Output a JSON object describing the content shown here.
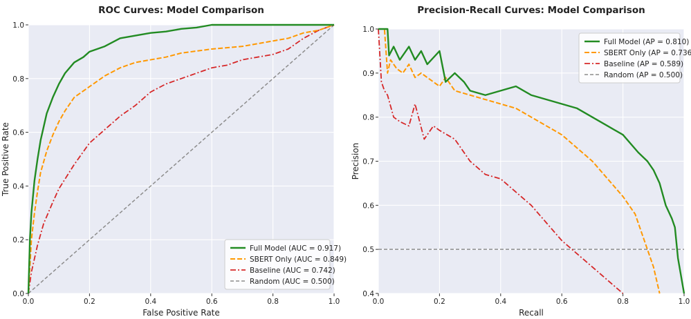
{
  "colors": {
    "panel_bg": "#e9ebf4",
    "grid": "#ffffff",
    "full_model": "#228b22",
    "sbert_only": "#ff9800",
    "baseline": "#d62728",
    "random": "#8c8c8c"
  },
  "chart_data": [
    {
      "type": "line",
      "title": "ROC Curves: Model Comparison",
      "xlabel": "False Positive Rate",
      "ylabel": "True Positive Rate",
      "xlim": [
        0,
        1
      ],
      "ylim": [
        0,
        1
      ],
      "xticks": [
        "0.0",
        "0.2",
        "0.4",
        "0.6",
        "0.8",
        "1.0"
      ],
      "yticks": [
        "0.0",
        "0.2",
        "0.4",
        "0.6",
        "0.8",
        "1.0"
      ],
      "grid": true,
      "legend_position": "bottom-right",
      "series": [
        {
          "name": "Full Model (AUC = 0.917)",
          "x": [
            0,
            0.005,
            0.01,
            0.02,
            0.03,
            0.04,
            0.05,
            0.06,
            0.08,
            0.1,
            0.12,
            0.15,
            0.18,
            0.2,
            0.25,
            0.3,
            0.35,
            0.4,
            0.45,
            0.5,
            0.55,
            0.6,
            0.7,
            0.8,
            0.9,
            1.0
          ],
          "y": [
            0,
            0.2,
            0.3,
            0.42,
            0.5,
            0.57,
            0.62,
            0.67,
            0.73,
            0.78,
            0.82,
            0.86,
            0.88,
            0.9,
            0.92,
            0.95,
            0.96,
            0.97,
            0.975,
            0.985,
            0.99,
            1.0,
            1.0,
            1.0,
            1.0,
            1.0
          ]
        },
        {
          "name": "SBERT Only (AUC = 0.849)",
          "x": [
            0,
            0.01,
            0.02,
            0.03,
            0.04,
            0.06,
            0.08,
            0.1,
            0.12,
            0.15,
            0.2,
            0.25,
            0.3,
            0.35,
            0.4,
            0.45,
            0.5,
            0.6,
            0.7,
            0.8,
            0.85,
            0.9,
            0.95,
            1.0
          ],
          "y": [
            0,
            0.2,
            0.3,
            0.38,
            0.45,
            0.53,
            0.59,
            0.64,
            0.68,
            0.73,
            0.77,
            0.81,
            0.84,
            0.86,
            0.87,
            0.88,
            0.895,
            0.91,
            0.92,
            0.94,
            0.95,
            0.97,
            0.98,
            1.0
          ]
        },
        {
          "name": "Baseline (AUC = 0.742)",
          "x": [
            0,
            0.01,
            0.03,
            0.05,
            0.08,
            0.1,
            0.15,
            0.2,
            0.25,
            0.3,
            0.35,
            0.4,
            0.45,
            0.5,
            0.55,
            0.6,
            0.65,
            0.7,
            0.75,
            0.8,
            0.85,
            0.9,
            0.95,
            1.0
          ],
          "y": [
            0,
            0.08,
            0.18,
            0.26,
            0.34,
            0.39,
            0.48,
            0.56,
            0.61,
            0.66,
            0.7,
            0.75,
            0.78,
            0.8,
            0.82,
            0.84,
            0.85,
            0.87,
            0.88,
            0.89,
            0.91,
            0.95,
            0.98,
            1.0
          ]
        },
        {
          "name": "Random (AUC = 0.500)",
          "x": [
            0,
            1
          ],
          "y": [
            0,
            1
          ]
        }
      ]
    },
    {
      "type": "line",
      "title": "Precision-Recall Curves: Model Comparison",
      "xlabel": "Recall",
      "ylabel": "Precision",
      "xlim": [
        0,
        1
      ],
      "ylim": [
        0.4,
        1.0
      ],
      "xticks": [
        "0.0",
        "0.2",
        "0.4",
        "0.6",
        "0.8",
        "1.0"
      ],
      "yticks": [
        "0.4",
        "0.5",
        "0.6",
        "0.7",
        "0.8",
        "0.9",
        "1.0"
      ],
      "grid": true,
      "legend_position": "top-right",
      "series": [
        {
          "name": "Full Model (AP = 0.810)",
          "x": [
            0,
            0.03,
            0.035,
            0.05,
            0.07,
            0.1,
            0.12,
            0.14,
            0.16,
            0.2,
            0.22,
            0.25,
            0.28,
            0.3,
            0.35,
            0.4,
            0.45,
            0.5,
            0.55,
            0.6,
            0.65,
            0.7,
            0.75,
            0.8,
            0.85,
            0.88,
            0.9,
            0.92,
            0.94,
            0.96,
            0.97,
            0.98,
            1.0
          ],
          "y": [
            1.0,
            1.0,
            0.94,
            0.96,
            0.93,
            0.96,
            0.93,
            0.95,
            0.92,
            0.95,
            0.88,
            0.9,
            0.88,
            0.86,
            0.85,
            0.86,
            0.87,
            0.85,
            0.84,
            0.83,
            0.82,
            0.8,
            0.78,
            0.76,
            0.72,
            0.7,
            0.68,
            0.65,
            0.6,
            0.57,
            0.55,
            0.48,
            0.4
          ]
        },
        {
          "name": "SBERT Only (AP = 0.736)",
          "x": [
            0,
            0.02,
            0.03,
            0.04,
            0.06,
            0.08,
            0.1,
            0.12,
            0.14,
            0.18,
            0.2,
            0.22,
            0.25,
            0.3,
            0.35,
            0.4,
            0.45,
            0.5,
            0.55,
            0.6,
            0.65,
            0.7,
            0.75,
            0.8,
            0.84,
            0.86,
            0.88,
            0.9,
            0.92
          ],
          "y": [
            1.0,
            1.0,
            0.9,
            0.93,
            0.91,
            0.9,
            0.92,
            0.89,
            0.9,
            0.88,
            0.87,
            0.89,
            0.86,
            0.85,
            0.84,
            0.83,
            0.82,
            0.8,
            0.78,
            0.76,
            0.73,
            0.7,
            0.66,
            0.62,
            0.58,
            0.54,
            0.5,
            0.46,
            0.4
          ]
        },
        {
          "name": "Baseline (AP = 0.589)",
          "x": [
            0,
            0.01,
            0.02,
            0.03,
            0.05,
            0.07,
            0.1,
            0.12,
            0.15,
            0.18,
            0.2,
            0.25,
            0.3,
            0.35,
            0.4,
            0.45,
            0.5,
            0.55,
            0.6,
            0.65,
            0.7,
            0.75,
            0.8
          ],
          "y": [
            1.0,
            0.88,
            0.86,
            0.85,
            0.8,
            0.79,
            0.78,
            0.83,
            0.75,
            0.78,
            0.77,
            0.75,
            0.7,
            0.67,
            0.66,
            0.63,
            0.6,
            0.56,
            0.52,
            0.49,
            0.46,
            0.43,
            0.4
          ]
        },
        {
          "name": "Random (AP = 0.500)",
          "x": [
            0,
            1
          ],
          "y": [
            0.5,
            0.5
          ]
        }
      ]
    }
  ]
}
